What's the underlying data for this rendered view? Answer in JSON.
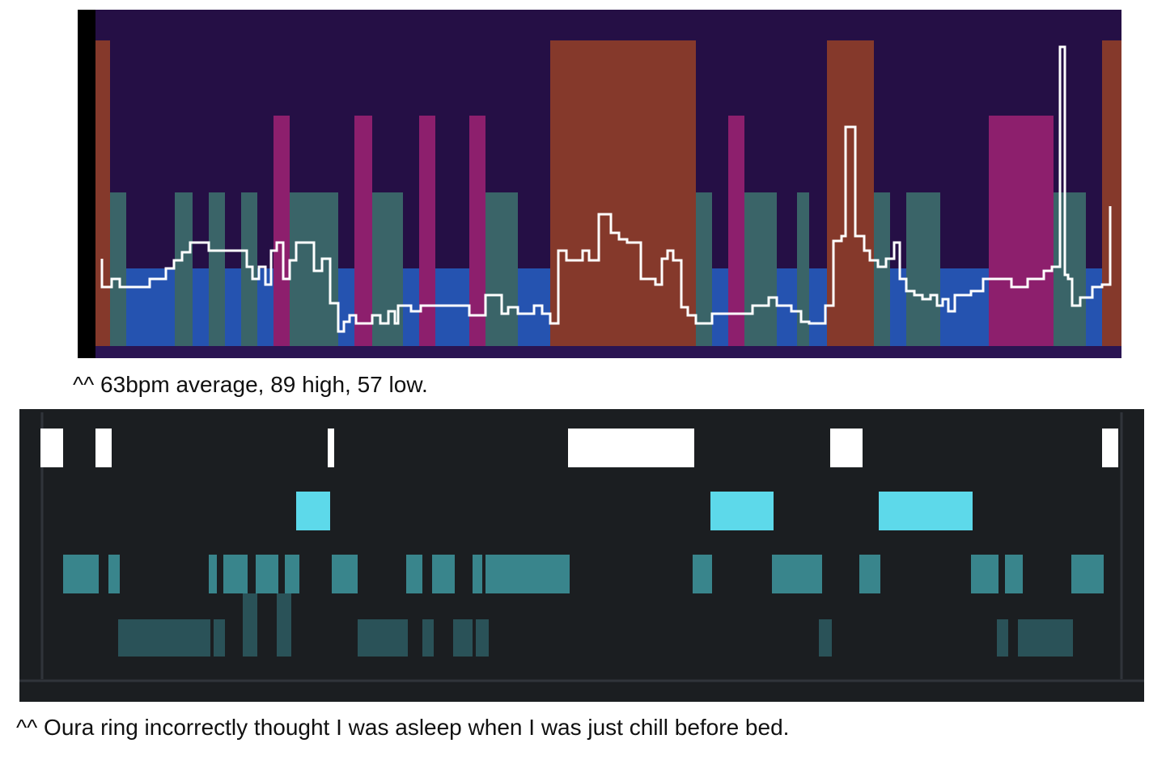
{
  "captions": [
    "^^ 63bpm average, 89 high, 57 low.",
    "^^ Oura ring incorrectly thought I was asleep when I was just chill before bed."
  ]
}
